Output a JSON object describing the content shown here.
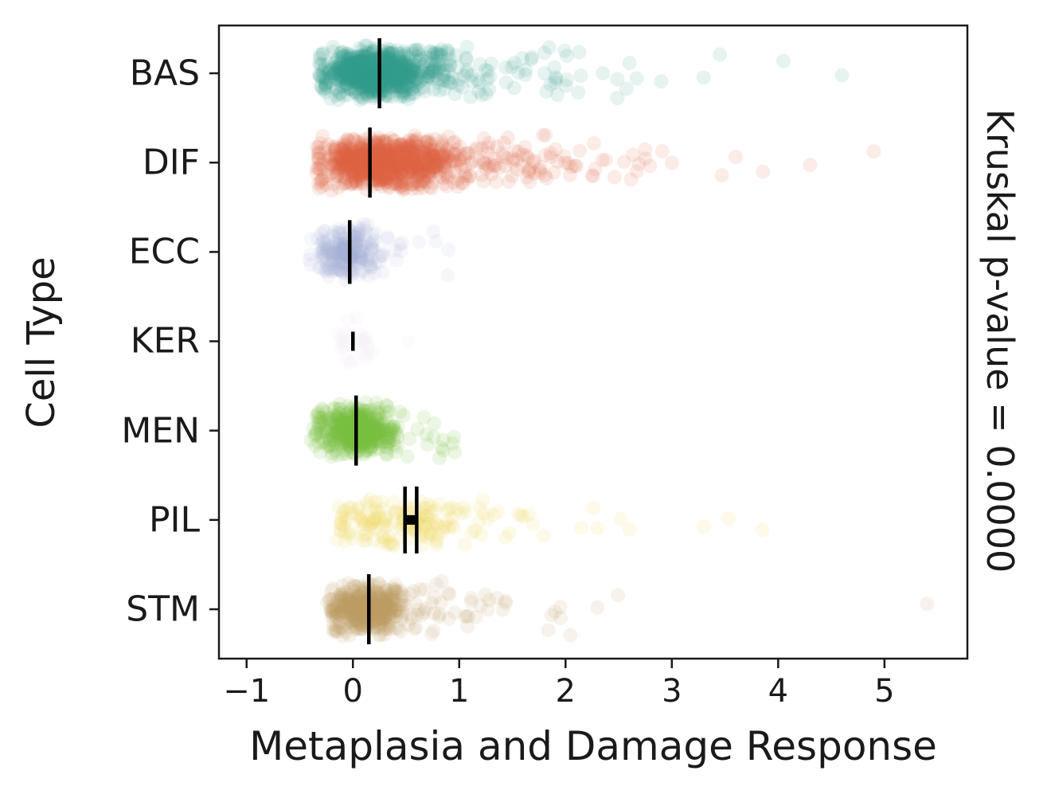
{
  "figure": {
    "xlabel": "Metaplasia and Damage Response",
    "ylabel": "Cell Type",
    "right_label": "Kruskal p-value = 0.0000"
  },
  "chart_data": {
    "type": "scatter",
    "subtype": "horizontal-strip-jitter",
    "title": "",
    "xlabel": "Metaplasia and Damage Response",
    "ylabel": "Cell Type",
    "right_annotation": "Kruskal p-value = 0.0000",
    "xlim": [
      -1.26,
      5.78
    ],
    "grid": false,
    "legend": false,
    "x_ticks": [
      {
        "value": -1,
        "label": "−1"
      },
      {
        "value": 0,
        "label": "0"
      },
      {
        "value": 1,
        "label": "1"
      },
      {
        "value": 2,
        "label": "2"
      },
      {
        "value": 3,
        "label": "3"
      },
      {
        "value": 4,
        "label": "4"
      },
      {
        "value": 5,
        "label": "5"
      }
    ],
    "point_radius": 9,
    "marker_color": "#000000",
    "categories": [
      {
        "name": "BAS",
        "color": "#2f9e8b",
        "point_alpha": 0.12,
        "n": 900,
        "core": {
          "center": 0.18,
          "sigma": 0.22,
          "min": -0.32
        },
        "tail": {
          "frac": 0.18,
          "start": 0.45,
          "scale": 0.6,
          "max": 4.65
        },
        "outliers": [
          4.6,
          4.05,
          3.3,
          2.9
        ],
        "mean": 0.25,
        "ci": [
          0.25,
          0.25
        ],
        "marker_half_height": 44,
        "center_marker": false
      },
      {
        "name": "DIF",
        "color": "#e2643f",
        "point_alpha": 0.12,
        "n": 1000,
        "core": {
          "center": 0.25,
          "sigma": 0.28,
          "min": -0.35
        },
        "tail": {
          "frac": 0.22,
          "start": 0.55,
          "scale": 0.65,
          "max": 4.95
        },
        "outliers": [
          4.9,
          4.3,
          3.6,
          3.0,
          2.75
        ],
        "mean": 0.16,
        "ci": [
          0.16,
          0.16
        ],
        "marker_half_height": 44,
        "center_marker": false
      },
      {
        "name": "ECC",
        "color": "#a9b5d9",
        "point_alpha": 0.1,
        "n": 260,
        "core": {
          "center": -0.07,
          "sigma": 0.15,
          "min": -0.48
        },
        "tail": {
          "frac": 0.06,
          "start": 0.15,
          "scale": 0.25,
          "max": 0.95
        },
        "outliers": [
          0.62,
          0.9
        ],
        "mean": -0.03,
        "ci": [
          -0.03,
          -0.03
        ],
        "marker_half_height": 40,
        "center_marker": false
      },
      {
        "name": "KER",
        "color": "#f6eff6",
        "point_alpha": 0.25,
        "n": 25,
        "core": {
          "center": 0.0,
          "sigma": 0.1,
          "min": -0.2
        },
        "tail": {
          "frac": 0.05,
          "start": 0.1,
          "scale": 0.2,
          "max": 0.6
        },
        "outliers": [],
        "mean": 0.0,
        "ci": [
          0.0,
          0.0
        ],
        "marker_half_height": 12,
        "center_marker": false
      },
      {
        "name": "MEN",
        "color": "#77c043",
        "point_alpha": 0.14,
        "n": 450,
        "core": {
          "center": 0.03,
          "sigma": 0.17,
          "min": -0.42
        },
        "tail": {
          "frac": 0.05,
          "start": 0.25,
          "scale": 0.3,
          "max": 1.0
        },
        "outliers": [
          0.85,
          0.95
        ],
        "mean": 0.03,
        "ci": [
          0.03,
          0.03
        ],
        "marker_half_height": 44,
        "center_marker": false
      },
      {
        "name": "PIL",
        "color": "#f1d34f",
        "point_alpha": 0.12,
        "n": 170,
        "core": {
          "center": 0.35,
          "sigma": 0.35,
          "min": -0.15
        },
        "tail": {
          "frac": 0.25,
          "start": 0.6,
          "scale": 0.8,
          "max": 3.9
        },
        "outliers": [
          3.85,
          3.3,
          2.6,
          2.3
        ],
        "mean": 0.55,
        "ci": [
          0.49,
          0.6
        ],
        "marker_half_height": 42,
        "center_marker": true
      },
      {
        "name": "STM",
        "color": "#bd9a60",
        "point_alpha": 0.12,
        "n": 480,
        "core": {
          "center": 0.12,
          "sigma": 0.18,
          "min": -0.25
        },
        "tail": {
          "frac": 0.12,
          "start": 0.35,
          "scale": 0.5,
          "max": 5.45
        },
        "outliers": [
          5.4,
          2.3,
          1.95
        ],
        "mean": 0.15,
        "ci": [
          0.15,
          0.15
        ],
        "marker_half_height": 44,
        "center_marker": false
      }
    ]
  }
}
